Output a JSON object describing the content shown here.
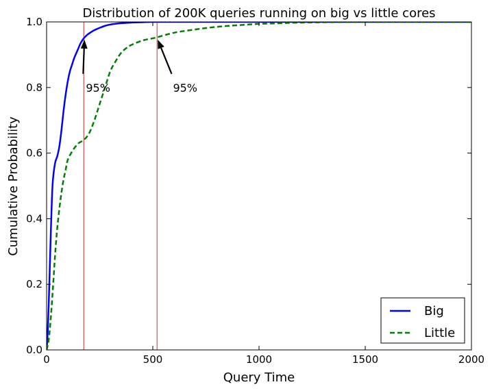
{
  "chart_data": {
    "type": "line",
    "title": "Distribution of 200K queries running on big vs little cores",
    "xlabel": "Query Time",
    "ylabel": "Cumulative Probability",
    "xlim": [
      0,
      2000
    ],
    "ylim": [
      0,
      1.0
    ],
    "xticks": [
      0,
      500,
      1000,
      1500,
      2000
    ],
    "xtick_labels": [
      "0",
      "500",
      "1000",
      "1500",
      "2000"
    ],
    "yticks": [
      0,
      0.2,
      0.4,
      0.6,
      0.8,
      1.0
    ],
    "ytick_labels": [
      "0.0",
      "0.2",
      "0.4",
      "0.6",
      "0.8",
      "1.0"
    ],
    "grid": false,
    "legend": {
      "position": "lower-right"
    },
    "series": [
      {
        "name": "Big",
        "color": "#0000ff",
        "style": "solid",
        "x": [
          0,
          5,
          10,
          15,
          20,
          25,
          30,
          40,
          50,
          60,
          70,
          80,
          90,
          100,
          110,
          120,
          130,
          140,
          150,
          160,
          175,
          190,
          200,
          225,
          250,
          275,
          300,
          350,
          400,
          450,
          500,
          600,
          800,
          1000,
          1500,
          2000
        ],
        "y": [
          0,
          0.05,
          0.14,
          0.25,
          0.36,
          0.46,
          0.52,
          0.57,
          0.59,
          0.62,
          0.67,
          0.73,
          0.78,
          0.82,
          0.85,
          0.87,
          0.89,
          0.905,
          0.92,
          0.935,
          0.95,
          0.96,
          0.965,
          0.975,
          0.982,
          0.988,
          0.992,
          0.996,
          0.998,
          0.999,
          1.0,
          1.0,
          1.0,
          1.0,
          1.0,
          1.0
        ]
      },
      {
        "name": "Little",
        "color": "#008000",
        "style": "dashed",
        "x": [
          0,
          10,
          20,
          30,
          40,
          50,
          60,
          70,
          80,
          90,
          100,
          125,
          150,
          175,
          200,
          225,
          250,
          275,
          300,
          325,
          350,
          375,
          400,
          450,
          500,
          520,
          600,
          700,
          800,
          900,
          1000,
          1100,
          1200,
          1500,
          2000
        ],
        "y": [
          0,
          0.03,
          0.1,
          0.19,
          0.29,
          0.37,
          0.43,
          0.48,
          0.52,
          0.55,
          0.58,
          0.61,
          0.63,
          0.64,
          0.66,
          0.7,
          0.75,
          0.8,
          0.85,
          0.88,
          0.905,
          0.92,
          0.93,
          0.943,
          0.95,
          0.953,
          0.967,
          0.977,
          0.985,
          0.99,
          0.994,
          0.996,
          0.998,
          1.0,
          1.0
        ]
      }
    ],
    "vlines": [
      {
        "x": 175,
        "color": "#cc3333"
      },
      {
        "x": 520,
        "color": "#cc3333"
      }
    ],
    "annotations": [
      {
        "text": "95%",
        "xy": [
          175,
          0.95
        ],
        "text_xy": [
          185,
          0.8
        ]
      },
      {
        "text": "95%",
        "xy": [
          520,
          0.95
        ],
        "text_xy": [
          595,
          0.8
        ]
      }
    ]
  }
}
